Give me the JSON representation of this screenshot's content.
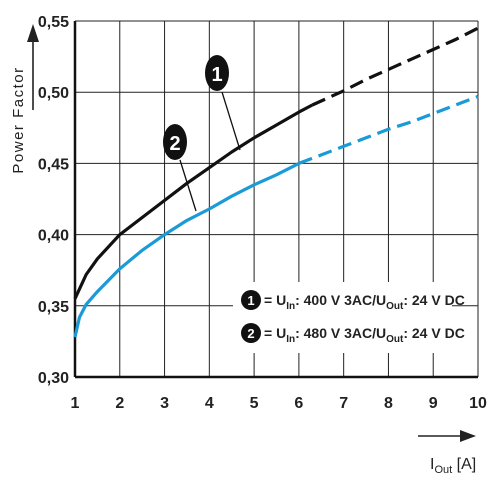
{
  "chart_data": {
    "type": "line",
    "ylabel": "Power Factor",
    "xlabel": {
      "main": "I",
      "sub": "Out",
      "unit": " [A]"
    },
    "xlim": [
      1,
      10
    ],
    "ylim": [
      0.3,
      0.55
    ],
    "x_ticks": [
      "1",
      "2",
      "3",
      "4",
      "5",
      "6",
      "7",
      "8",
      "9",
      "10"
    ],
    "y_ticks": [
      "0,30",
      "0,35",
      "0,40",
      "0,45",
      "0,50",
      "0,55"
    ],
    "grid": true,
    "legend_placement": "bottom-right",
    "series": [
      {
        "marker": "1",
        "color": "#111111",
        "legend": {
          "u_in_sub": "In",
          "mid": ": 400 V 3AC/U",
          "u_out_sub": "Out",
          "tail": ": 24 V DC"
        },
        "solid": {
          "x": [
            1,
            1.25,
            1.5,
            2,
            2.5,
            3,
            3.5,
            4,
            4.5,
            5,
            5.5,
            6,
            6.3
          ],
          "y": [
            0.355,
            0.372,
            0.383,
            0.4,
            0.412,
            0.424,
            0.436,
            0.447,
            0.458,
            0.468,
            0.477,
            0.486,
            0.491
          ]
        },
        "dashed": {
          "x": [
            6.3,
            7,
            7.5,
            8,
            8.5,
            9,
            9.5,
            10
          ],
          "y": [
            0.491,
            0.501,
            0.509,
            0.516,
            0.523,
            0.53,
            0.537,
            0.545
          ]
        }
      },
      {
        "marker": "2",
        "color": "#1a9ad6",
        "legend": {
          "u_in_sub": "In",
          "mid": ": 480 V 3AC/U",
          "u_out_sub": "Out",
          "tail": ": 24 V DC"
        },
        "solid": {
          "x": [
            1,
            1.1,
            1.25,
            1.5,
            2,
            2.5,
            3,
            3.5,
            4,
            4.5,
            5,
            5.5,
            6
          ],
          "y": [
            0.328,
            0.342,
            0.351,
            0.36,
            0.376,
            0.389,
            0.4,
            0.41,
            0.418,
            0.427,
            0.435,
            0.442,
            0.45
          ]
        },
        "dashed": {
          "x": [
            6,
            6.5,
            7,
            7.5,
            8,
            8.5,
            9,
            9.5,
            10
          ],
          "y": [
            0.45,
            0.456,
            0.462,
            0.468,
            0.474,
            0.479,
            0.485,
            0.491,
            0.497
          ]
        }
      }
    ]
  }
}
